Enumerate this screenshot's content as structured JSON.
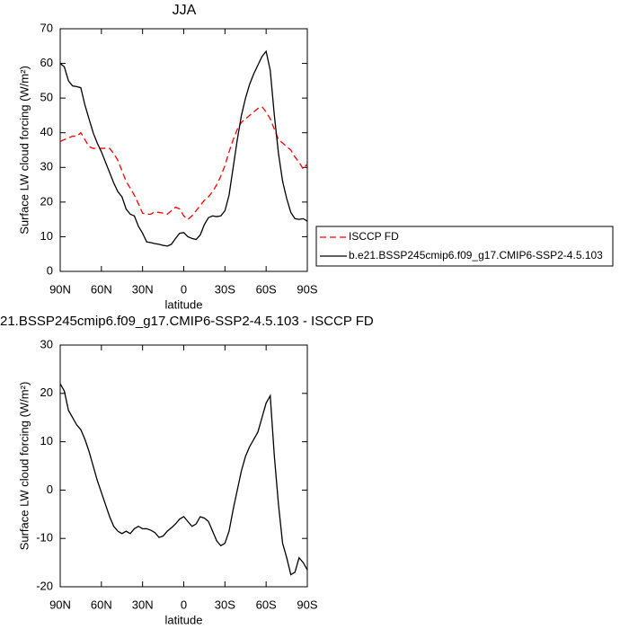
{
  "chart_data": [
    {
      "type": "line",
      "title": "JJA",
      "xlabel": "latitude",
      "ylabel": "Surface LW cloud forcing (W/m²)",
      "xlim": [
        90,
        -90
      ],
      "xticks": [
        {
          "value": 90,
          "label": "90N"
        },
        {
          "value": 60,
          "label": "60N"
        },
        {
          "value": 30,
          "label": "30N"
        },
        0,
        {
          "value": -30,
          "label": "30S"
        },
        {
          "value": -60,
          "label": "60S"
        },
        {
          "value": -90,
          "label": "90S"
        }
      ],
      "ylim": [
        0,
        70
      ],
      "yticks": [
        0,
        10,
        20,
        30,
        40,
        50,
        60,
        70
      ],
      "legend": "right",
      "x": [
        90,
        87,
        84,
        81,
        78,
        75,
        72,
        69,
        66,
        63,
        60,
        57,
        54,
        51,
        48,
        45,
        42,
        39,
        36,
        33,
        30,
        27,
        24,
        21,
        18,
        15,
        12,
        9,
        6,
        3,
        0,
        -3,
        -6,
        -9,
        -12,
        -15,
        -18,
        -21,
        -24,
        -27,
        -30,
        -33,
        -36,
        -39,
        -42,
        -45,
        -48,
        -51,
        -54,
        -57,
        -60,
        -63,
        -66,
        -69,
        -72,
        -75,
        -78,
        -81,
        -84,
        -87,
        -90
      ],
      "series": [
        {
          "name": "ISCCP FD",
          "color": "#ff0000",
          "linestyle": "dashed",
          "values": [
            37.5,
            38,
            38.5,
            39,
            39,
            40,
            38,
            36,
            35.5,
            35.5,
            35.5,
            35.5,
            35.5,
            34,
            32,
            29,
            26,
            24,
            22,
            19.5,
            16.8,
            16.5,
            16.5,
            17.2,
            17,
            16.8,
            16.5,
            17.5,
            18.5,
            18,
            16,
            15,
            16,
            17.5,
            19,
            20.5,
            21.5,
            23,
            25,
            27.5,
            30.5,
            34.5,
            38,
            41,
            43,
            44,
            45,
            46,
            47,
            47.5,
            46,
            44,
            41,
            38,
            37,
            36,
            35,
            33,
            31.5,
            29.5,
            31
          ]
        },
        {
          "name": "b.e21.BSSP245cmip6.f09_g17.CMIP6-SSP2-4.5.103",
          "color": "#000000",
          "linestyle": "solid",
          "values": [
            60,
            59,
            55,
            53.5,
            53.3,
            53,
            48,
            44,
            40,
            37,
            34.5,
            31.5,
            28.5,
            25.5,
            23,
            21.5,
            18,
            16.5,
            16,
            13,
            11,
            8.5,
            8.3,
            8,
            7.8,
            7.5,
            7.3,
            7.8,
            9.5,
            11,
            11.2,
            10,
            9.5,
            9.2,
            10.5,
            13.5,
            15.5,
            16,
            15.8,
            16,
            17.5,
            22,
            30,
            38,
            45,
            50,
            54,
            57,
            59.5,
            62,
            63.5,
            58,
            45,
            34,
            26,
            21,
            17,
            15.2,
            15,
            15.2,
            14.5
          ]
        }
      ]
    },
    {
      "type": "line",
      "title": "21.BSSP245cmip6.f09_g17.CMIP6-SSP2-4.5.103 - ISCCP FD",
      "xlabel": "latitude",
      "ylabel": "Surface LW cloud forcing (W/m²)",
      "xlim": [
        90,
        -90
      ],
      "xticks": [
        {
          "value": 90,
          "label": "90N"
        },
        {
          "value": 60,
          "label": "60N"
        },
        {
          "value": 30,
          "label": "30N"
        },
        0,
        {
          "value": -30,
          "label": "30S"
        },
        {
          "value": -60,
          "label": "60S"
        },
        {
          "value": -90,
          "label": "90S"
        }
      ],
      "ylim": [
        -20,
        30
      ],
      "yticks": [
        -20,
        -10,
        0,
        10,
        20,
        30
      ],
      "color": "#000000",
      "x": [
        90,
        87,
        84,
        81,
        78,
        75,
        72,
        69,
        66,
        63,
        60,
        57,
        54,
        51,
        48,
        45,
        42,
        39,
        36,
        33,
        30,
        27,
        24,
        21,
        18,
        15,
        12,
        9,
        6,
        3,
        0,
        -3,
        -6,
        -9,
        -12,
        -15,
        -18,
        -21,
        -24,
        -27,
        -30,
        -33,
        -36,
        -39,
        -42,
        -45,
        -48,
        -51,
        -54,
        -57,
        -60,
        -63,
        -66,
        -69,
        -72,
        -75,
        -78,
        -81,
        -84,
        -87,
        -90
      ],
      "values": [
        22,
        20.5,
        16.5,
        15,
        13.5,
        12.5,
        10.5,
        8,
        5,
        2,
        -0.5,
        -3,
        -5.5,
        -7.5,
        -8.5,
        -9,
        -8.5,
        -9,
        -8,
        -7.5,
        -8,
        -8,
        -8.3,
        -8.8,
        -9.8,
        -9.5,
        -8.5,
        -7.8,
        -7,
        -6,
        -5.5,
        -6.5,
        -7.5,
        -7,
        -5.5,
        -5.8,
        -6.5,
        -8.5,
        -10.5,
        -11.5,
        -11,
        -8.5,
        -4,
        0,
        4,
        7,
        9,
        10.5,
        12,
        15,
        18,
        19.5,
        7,
        -3,
        -11,
        -14,
        -17.5,
        -17,
        -14,
        -15,
        -16.5
      ]
    }
  ]
}
